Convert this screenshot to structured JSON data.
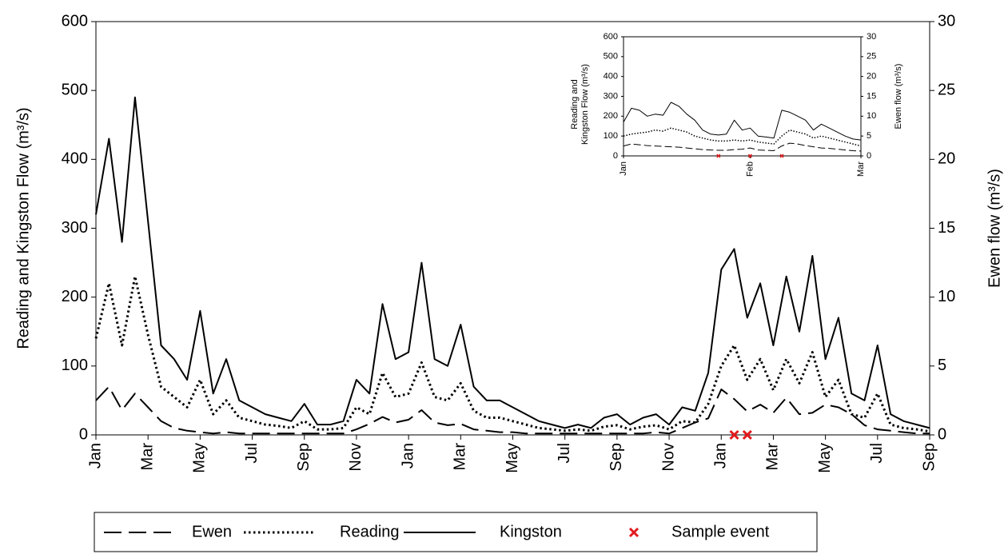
{
  "chart_data": [
    {
      "type": "line",
      "ylabel": "Reading and Kingston Flow (m³/s)",
      "y2label": "Ewen flow (m³/s)",
      "categories": [
        "Jan",
        null,
        null,
        null,
        "Mar",
        null,
        null,
        null,
        "May",
        null,
        null,
        null,
        "Jul",
        null,
        null,
        null,
        "Sep",
        null,
        null,
        null,
        "Nov",
        null,
        null,
        null,
        "Jan",
        null,
        null,
        null,
        "Mar",
        null,
        null,
        null,
        "May",
        null,
        null,
        null,
        "Jul",
        null,
        null,
        null,
        "Sep",
        null,
        null,
        null,
        "Nov",
        null,
        null,
        null,
        "Jan",
        null,
        null,
        null,
        "Mar",
        null,
        null,
        null,
        "May",
        null,
        null,
        null,
        "Jul",
        null,
        null,
        null,
        "Sep"
      ],
      "ylim": [
        0,
        600
      ],
      "yticks": [
        0,
        100,
        200,
        300,
        400,
        500,
        600
      ],
      "y2lim": [
        0,
        30
      ],
      "y2ticks": [
        0,
        5,
        10,
        15,
        20,
        25,
        30
      ],
      "legend": "bottom",
      "series": [
        {
          "name": "Ewen",
          "color": "#000000",
          "line_style": "dashed",
          "axis": "y2",
          "values": [
            2.5,
            3.5,
            1.8,
            3,
            2,
            1,
            0.5,
            0.3,
            0.2,
            0.1,
            0.2,
            0.1,
            0.1,
            0.1,
            0.1,
            0.1,
            0.1,
            0.1,
            0.1,
            0.1,
            0.4,
            0.8,
            1.3,
            0.9,
            1.1,
            1.8,
            0.9,
            0.7,
            0.8,
            0.4,
            0.3,
            0.2,
            0.2,
            0.1,
            0.1,
            0.1,
            0.1,
            0.1,
            0.1,
            0.1,
            0.1,
            0.1,
            0.1,
            0.2,
            0.1,
            0.5,
            0.9,
            1.2,
            3.3,
            2.6,
            1.7,
            2.2,
            1.6,
            2.7,
            1.5,
            1.6,
            2.2,
            2,
            1.5,
            0.7,
            0.4,
            0.3,
            0.2,
            0.1,
            0.1
          ]
        },
        {
          "name": "Reading",
          "color": "#000000",
          "line_style": "dotted",
          "values": [
            140,
            220,
            130,
            230,
            145,
            70,
            55,
            40,
            80,
            30,
            50,
            25,
            20,
            15,
            13,
            10,
            20,
            8,
            8,
            10,
            40,
            30,
            90,
            55,
            60,
            105,
            55,
            50,
            75,
            35,
            25,
            25,
            20,
            15,
            10,
            8,
            6,
            8,
            6,
            12,
            14,
            8,
            12,
            14,
            8,
            20,
            18,
            45,
            100,
            130,
            80,
            110,
            65,
            110,
            75,
            120,
            55,
            80,
            30,
            25,
            60,
            15,
            10,
            8,
            5
          ]
        },
        {
          "name": "Kingston",
          "color": "#000000",
          "line_style": "solid",
          "values": [
            320,
            430,
            280,
            490,
            310,
            130,
            110,
            80,
            180,
            60,
            110,
            50,
            40,
            30,
            25,
            20,
            45,
            15,
            15,
            20,
            80,
            60,
            190,
            110,
            120,
            250,
            110,
            100,
            160,
            70,
            50,
            50,
            40,
            30,
            20,
            15,
            10,
            15,
            10,
            25,
            30,
            15,
            25,
            30,
            15,
            40,
            35,
            90,
            240,
            270,
            170,
            220,
            130,
            230,
            150,
            260,
            110,
            170,
            60,
            50,
            130,
            30,
            20,
            15,
            10
          ]
        },
        {
          "name": "Sample event",
          "color": "#e31a1c",
          "marker": "x",
          "values": [
            null,
            null,
            null,
            null,
            null,
            null,
            null,
            null,
            null,
            null,
            null,
            null,
            null,
            null,
            null,
            null,
            null,
            null,
            null,
            null,
            null,
            null,
            null,
            null,
            null,
            null,
            null,
            null,
            null,
            null,
            null,
            null,
            null,
            null,
            null,
            null,
            null,
            null,
            null,
            null,
            null,
            null,
            null,
            null,
            null,
            null,
            null,
            null,
            null,
            0,
            0,
            null,
            null,
            null,
            null,
            null,
            null,
            null,
            null,
            null,
            null,
            null,
            null,
            null,
            null
          ]
        }
      ]
    },
    {
      "type": "line",
      "ylabel": [
        "Reading and",
        "Kingston Flow (m³/s)"
      ],
      "y2label": "Ewen flow (m³/s)",
      "categories": [
        "Jan",
        null,
        null,
        null,
        null,
        null,
        null,
        null,
        null,
        null,
        null,
        null,
        null,
        null,
        null,
        null,
        "Feb",
        null,
        null,
        null,
        null,
        null,
        null,
        null,
        null,
        null,
        null,
        null,
        null,
        null,
        "Mar"
      ],
      "ylim": [
        0,
        600
      ],
      "yticks": [
        0,
        100,
        200,
        300,
        400,
        500,
        600
      ],
      "y2lim": [
        0,
        30
      ],
      "y2ticks": [
        0,
        5,
        10,
        15,
        20,
        25,
        30
      ],
      "series": [
        {
          "color": "#000000",
          "line_style": "dashed",
          "axis": "y2",
          "values": [
            2.5,
            3,
            2.8,
            2.6,
            2.5,
            2.4,
            2.3,
            2.2,
            2,
            1.8,
            1.6,
            1.5,
            1.4,
            1.4,
            1.6,
            1.7,
            2,
            1.5,
            1.4,
            1.3,
            2.5,
            3.2,
            3,
            2.6,
            2.3,
            2,
            1.9,
            1.7,
            1.5,
            1.3,
            1.2
          ]
        },
        {
          "color": "#000000",
          "line_style": "dotted",
          "values": [
            100,
            110,
            115,
            120,
            130,
            125,
            140,
            130,
            120,
            100,
            90,
            80,
            75,
            75,
            80,
            75,
            80,
            70,
            65,
            60,
            100,
            130,
            120,
            110,
            90,
            100,
            90,
            80,
            70,
            60,
            50
          ]
        },
        {
          "color": "#000000",
          "line_style": "solid",
          "values": [
            170,
            240,
            230,
            200,
            210,
            205,
            270,
            250,
            210,
            180,
            130,
            110,
            105,
            110,
            180,
            130,
            140,
            100,
            95,
            90,
            230,
            220,
            200,
            180,
            130,
            160,
            140,
            120,
            100,
            85,
            80
          ]
        },
        {
          "color": "#e31a1c",
          "marker": "x",
          "values": [
            null,
            null,
            null,
            null,
            null,
            null,
            null,
            null,
            null,
            null,
            null,
            null,
            0,
            null,
            null,
            null,
            0,
            null,
            null,
            null,
            0,
            null,
            null,
            null,
            null,
            null,
            null,
            null,
            null,
            null,
            null
          ]
        }
      ]
    }
  ]
}
